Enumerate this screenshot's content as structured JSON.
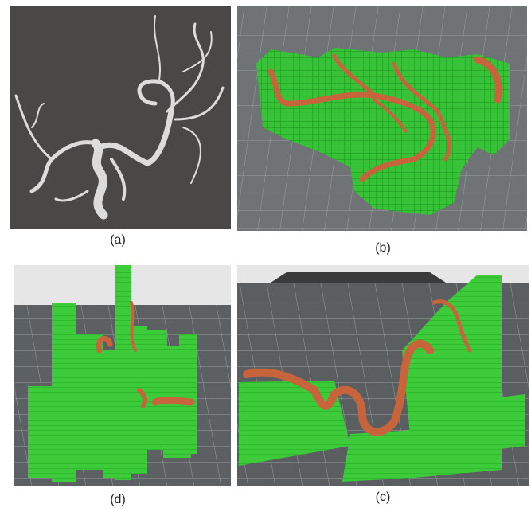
{
  "panels": [
    {
      "caption": "(a)"
    },
    {
      "caption": "(b)"
    },
    {
      "caption": "(d)"
    },
    {
      "caption": "(c)"
    }
  ]
}
